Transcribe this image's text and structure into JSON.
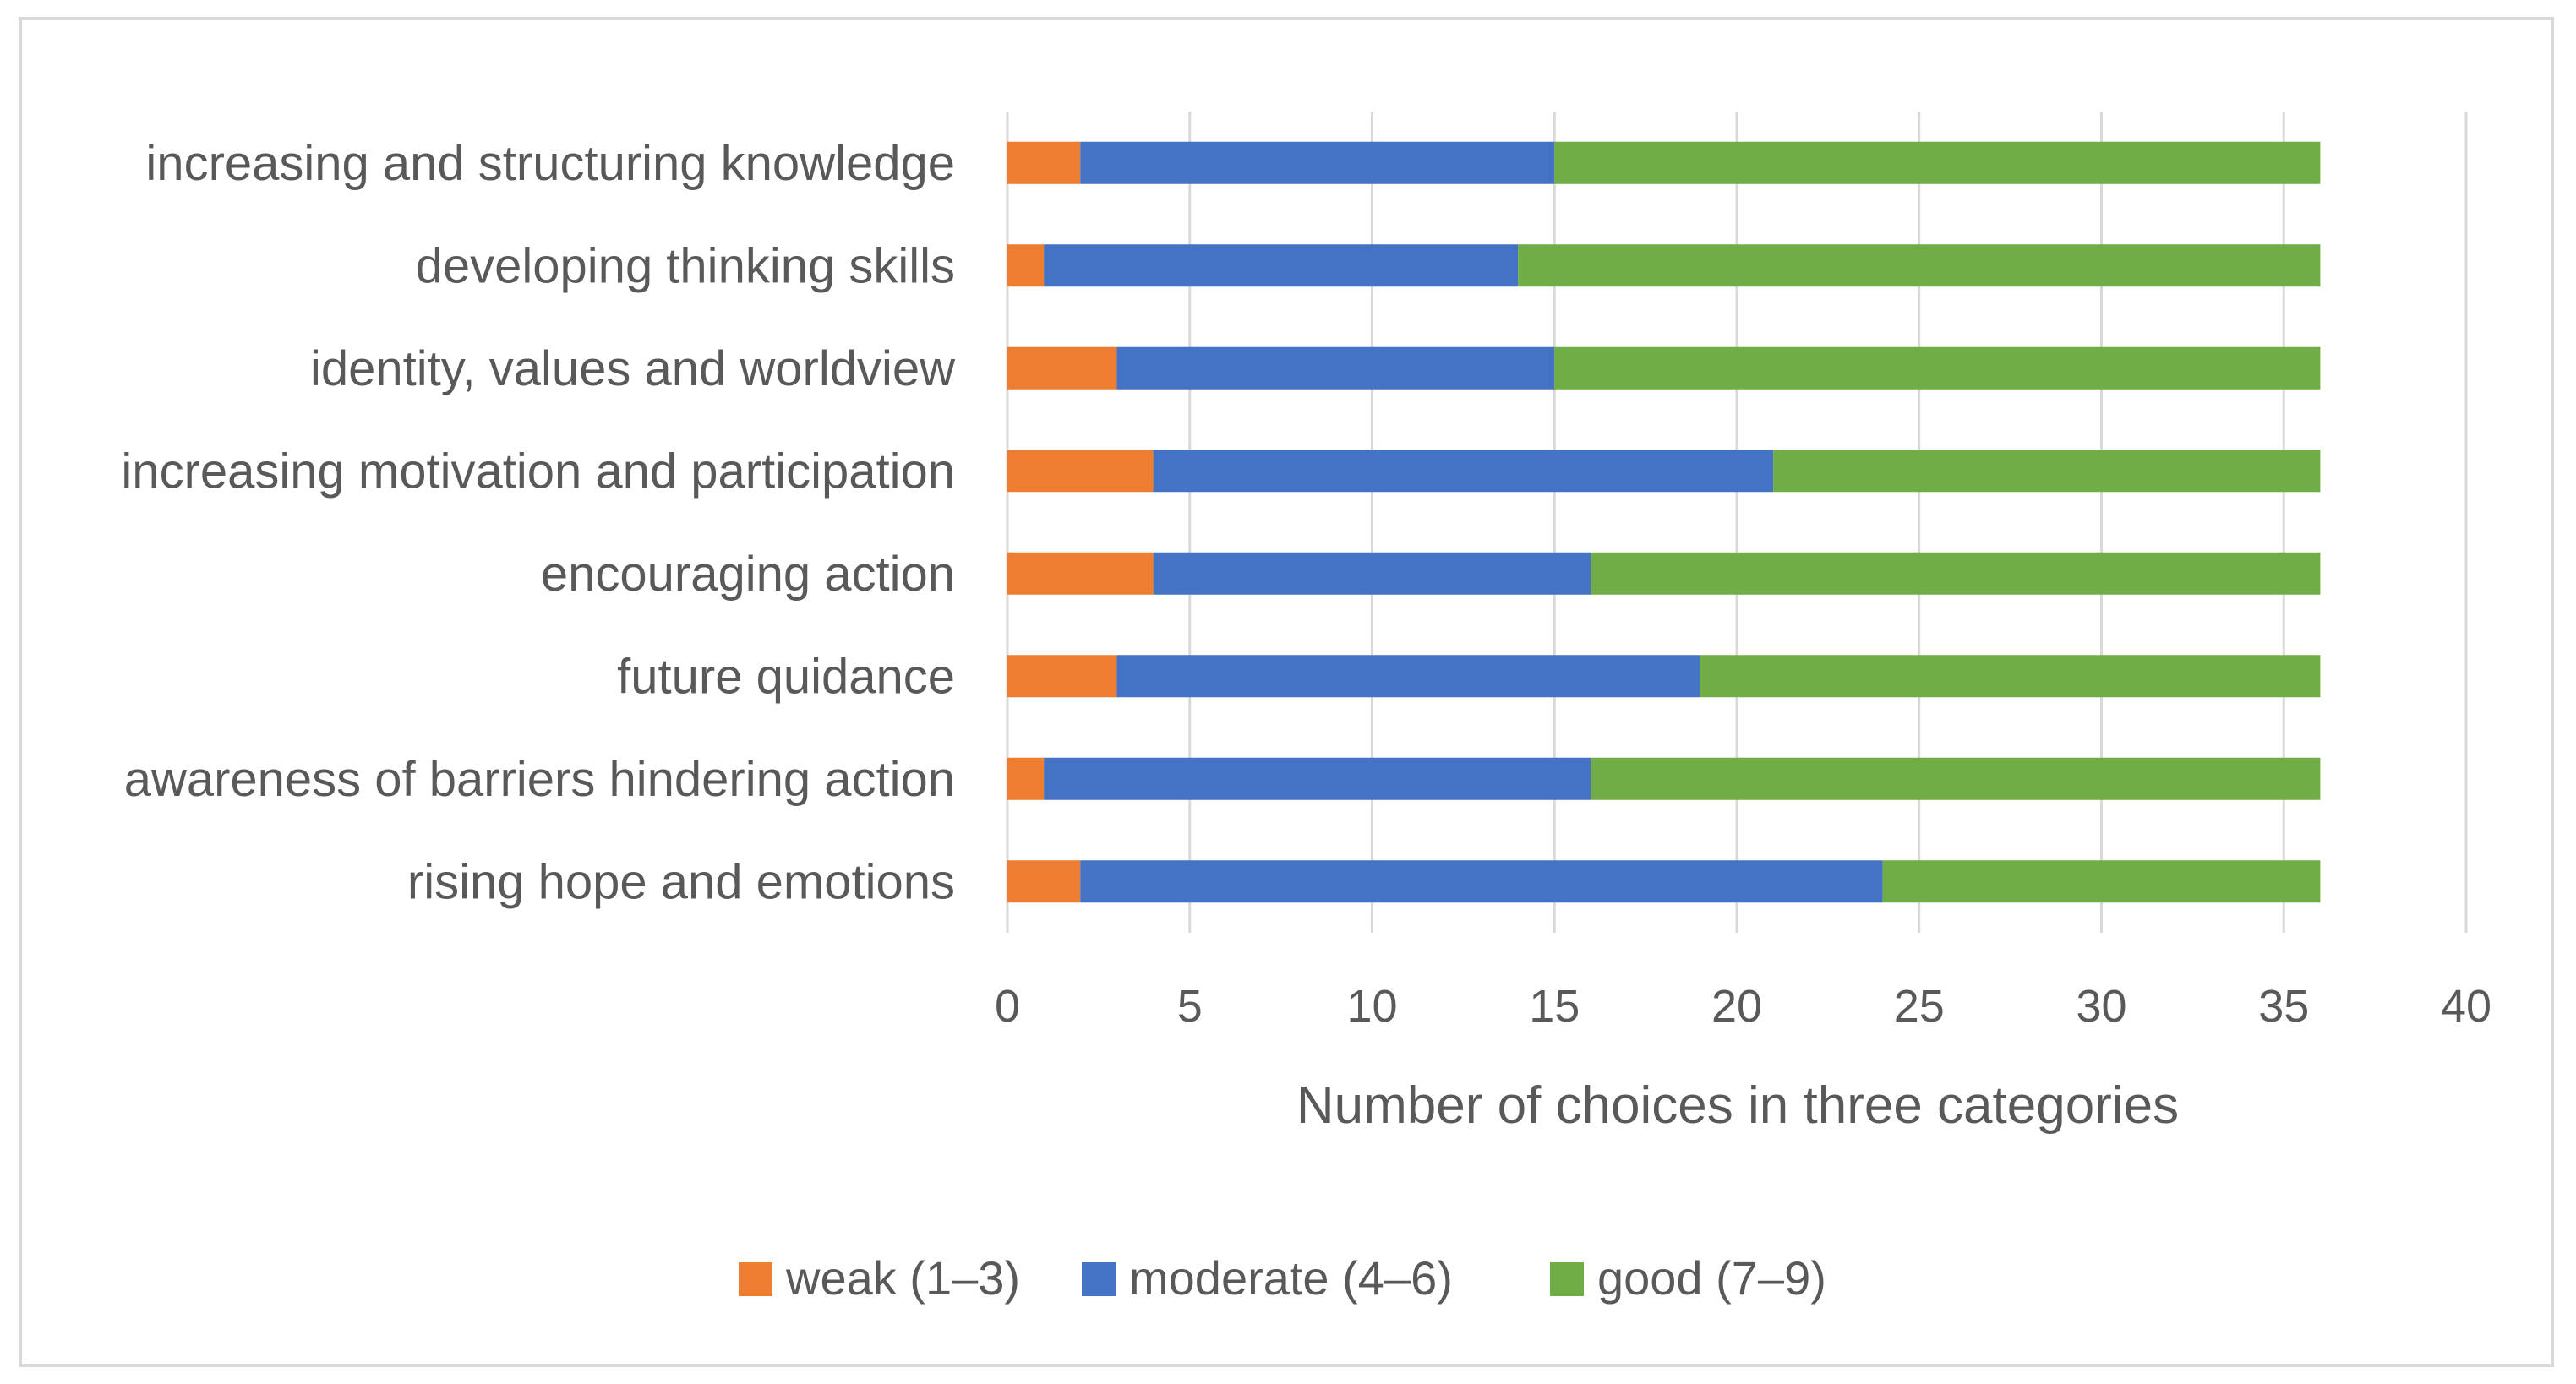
{
  "chart_data": {
    "type": "bar",
    "orientation": "horizontal",
    "stacked": true,
    "categories": [
      "increasing and structuring knowledge",
      "developing thinking skills",
      "identity, values and worldview",
      "increasing motivation and participation",
      "encouraging action",
      "future quidance",
      "awareness of barriers hindering action",
      "rising hope and emotions"
    ],
    "series": [
      {
        "name": "weak (1–3)",
        "color": "#ED7D31",
        "values": [
          2,
          1,
          3,
          4,
          4,
          3,
          1,
          2
        ]
      },
      {
        "name": "moderate (4–6)",
        "color": "#4472C4",
        "values": [
          13,
          13,
          12,
          17,
          12,
          16,
          15,
          22
        ]
      },
      {
        "name": "good (7–9)",
        "color": "#70AD47",
        "values": [
          21,
          22,
          21,
          15,
          20,
          17,
          20,
          12
        ]
      }
    ],
    "title": "",
    "xlabel": "Number of choices in three categories",
    "ylabel": "",
    "xlim": [
      0,
      40
    ],
    "xticks": [
      "0",
      "5",
      "10",
      "15",
      "20",
      "25",
      "30",
      "35",
      "40"
    ],
    "grid": "vertical",
    "legend_position": "bottom",
    "gridline_color": "#d9d9d9"
  }
}
